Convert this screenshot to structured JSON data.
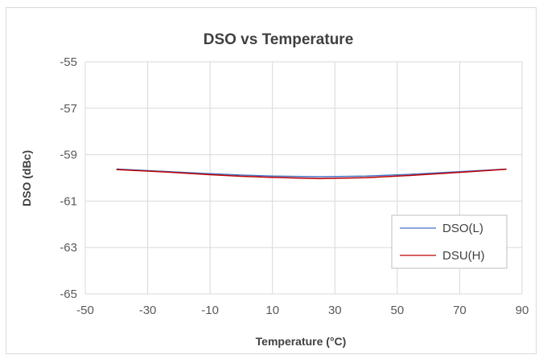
{
  "chart_data": {
    "type": "line",
    "title": "DSO vs Temperature",
    "xlabel": "Temperature (°C)",
    "ylabel": "DSO (dBc)",
    "xlim": [
      -50,
      90
    ],
    "ylim": [
      -65,
      -55
    ],
    "x_ticks": [
      -50,
      -30,
      -10,
      10,
      30,
      50,
      70,
      90
    ],
    "y_ticks": [
      -55,
      -57,
      -59,
      -61,
      -63,
      -65
    ],
    "grid": true,
    "legend_position": "bottom-right",
    "series": [
      {
        "name": "DSO(L)",
        "color": "#4472c4",
        "x": [
          -40,
          -25,
          -10,
          0,
          10,
          25,
          40,
          55,
          70,
          85
        ],
        "y": [
          -59.62,
          -59.72,
          -59.82,
          -59.88,
          -59.92,
          -59.95,
          -59.92,
          -59.84,
          -59.73,
          -59.62
        ]
      },
      {
        "name": "DSU(H)",
        "color": "#c00000",
        "x": [
          -40,
          -25,
          -10,
          0,
          10,
          25,
          40,
          55,
          70,
          85
        ],
        "y": [
          -59.64,
          -59.74,
          -59.86,
          -59.93,
          -59.98,
          -60.03,
          -59.99,
          -59.89,
          -59.76,
          -59.63
        ]
      }
    ]
  }
}
